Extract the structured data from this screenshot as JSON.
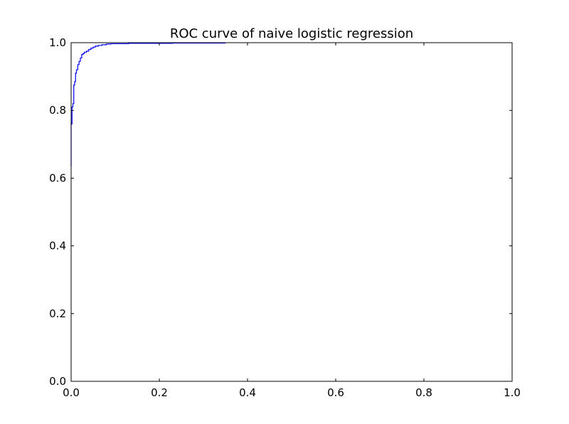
{
  "chart_data": {
    "type": "line",
    "title": "ROC curve of naive logistic regression",
    "xlabel": "",
    "ylabel": "",
    "xlim": [
      0.0,
      1.0
    ],
    "ylim": [
      0.0,
      1.0
    ],
    "grid": false,
    "xticks": [
      "0.0",
      "0.2",
      "0.4",
      "0.6",
      "0.8",
      "1.0"
    ],
    "yticks": [
      "0.0",
      "0.2",
      "0.4",
      "0.6",
      "0.8",
      "1.0"
    ],
    "series": [
      {
        "color": "#0000ff",
        "x": [
          0.0,
          0.0,
          0.002,
          0.002,
          0.004,
          0.004,
          0.006,
          0.006,
          0.008,
          0.008,
          0.01,
          0.01,
          0.012,
          0.012,
          0.015,
          0.015,
          0.018,
          0.018,
          0.021,
          0.021,
          0.024,
          0.024,
          0.027,
          0.027,
          0.03,
          0.03,
          0.035,
          0.035,
          0.04,
          0.04,
          0.045,
          0.045,
          0.05,
          0.05,
          0.055,
          0.055,
          0.062,
          0.062,
          0.07,
          0.07,
          0.08,
          0.08,
          0.09,
          0.09,
          0.13,
          0.13,
          0.23,
          0.23,
          0.35
        ],
        "y": [
          0.635,
          0.76,
          0.76,
          0.81,
          0.81,
          0.82,
          0.82,
          0.875,
          0.875,
          0.885,
          0.885,
          0.91,
          0.91,
          0.92,
          0.92,
          0.935,
          0.935,
          0.945,
          0.945,
          0.955,
          0.955,
          0.965,
          0.965,
          0.968,
          0.968,
          0.972,
          0.972,
          0.975,
          0.975,
          0.98,
          0.98,
          0.984,
          0.984,
          0.987,
          0.987,
          0.99,
          0.99,
          0.992,
          0.992,
          0.994,
          0.994,
          0.996,
          0.996,
          0.997,
          0.997,
          0.998,
          0.998,
          0.999,
          0.999
        ]
      }
    ]
  }
}
